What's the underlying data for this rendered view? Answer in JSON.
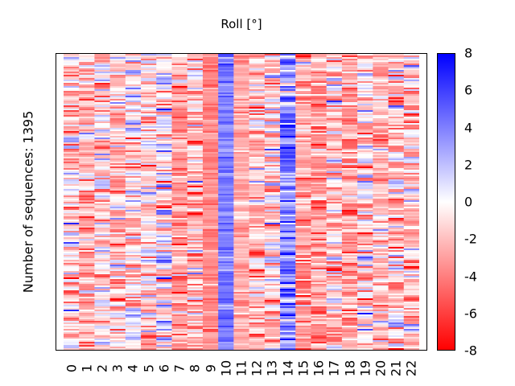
{
  "chart_data": {
    "type": "heatmap",
    "title": "Roll [°]",
    "xlabel": "",
    "ylabel": "Number of sequences: 1395",
    "n_rows": 1395,
    "x_tick_labels": [
      "0",
      "1",
      "2",
      "3",
      "4",
      "5",
      "6",
      "7",
      "8",
      "9",
      "10",
      "11",
      "12",
      "13",
      "14",
      "15",
      "16",
      "17",
      "18",
      "19",
      "20",
      "21",
      "22"
    ],
    "column_mean": [
      -1.0,
      -2.0,
      -1.2,
      -2.0,
      -1.0,
      -1.2,
      0.0,
      -3.0,
      -2.0,
      -3.5,
      4.0,
      -2.5,
      -2.0,
      -1.5,
      4.0,
      -3.0,
      -3.0,
      -1.5,
      -3.0,
      -1.0,
      -2.0,
      -1.0,
      -2.0
    ],
    "column_spread": [
      3.0,
      2.2,
      2.8,
      2.5,
      3.0,
      2.5,
      3.5,
      1.8,
      2.5,
      0.8,
      1.0,
      1.2,
      2.2,
      3.0,
      2.5,
      1.8,
      2.0,
      2.5,
      1.8,
      3.0,
      2.2,
      3.0,
      2.5
    ],
    "colorbar": {
      "label": "",
      "range": [
        -8,
        8
      ],
      "ticks": [
        "8",
        "6",
        "4",
        "2",
        "0",
        "-2",
        "-4",
        "-6",
        "-8"
      ],
      "tick_values": [
        8,
        6,
        4,
        2,
        0,
        -2,
        -4,
        -6,
        -8
      ],
      "colormap": "bwr_r",
      "low_color": "#ff0000",
      "mid_color": "#ffffff",
      "high_color": "#0000ff"
    },
    "grid": false,
    "legend": "colorbar-right"
  }
}
